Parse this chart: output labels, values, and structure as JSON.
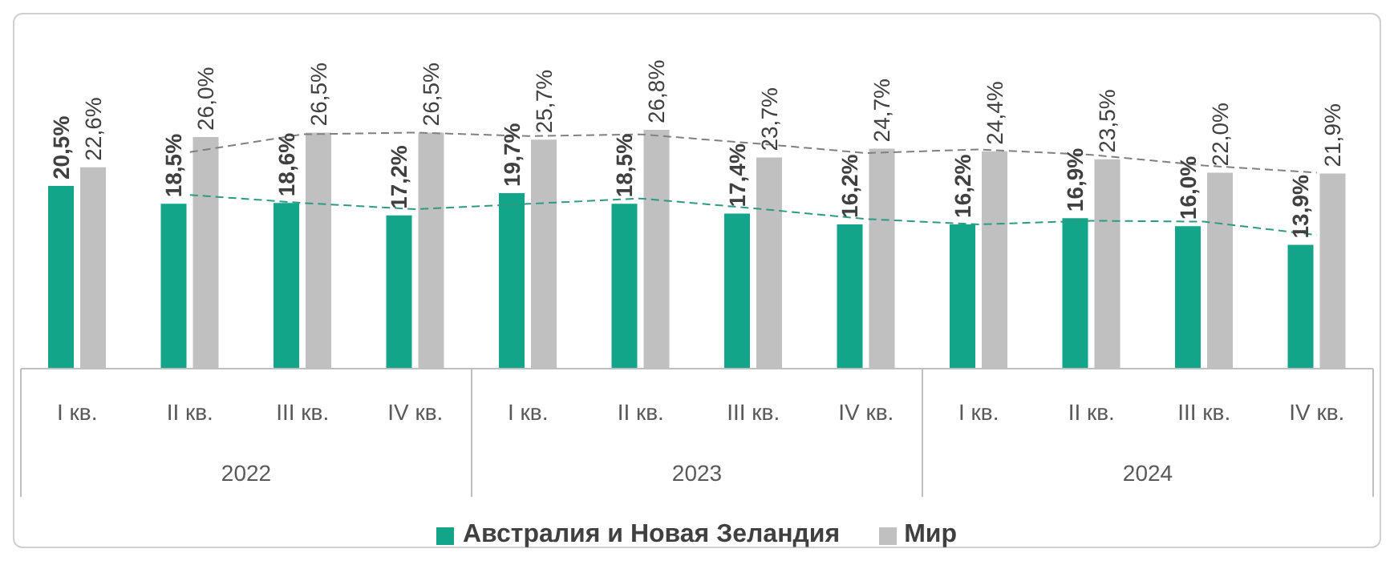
{
  "chart_data": {
    "type": "bar",
    "categories": [
      "I кв.",
      "II кв.",
      "III кв.",
      "IV кв.",
      "I кв.",
      "II кв.",
      "III кв.",
      "IV кв.",
      "I кв.",
      "II кв.",
      "III кв.",
      "IV кв."
    ],
    "series": [
      {
        "name": "Австралия и Новая Зеландия",
        "color": "#12a58a",
        "values": [
          20.5,
          18.5,
          18.6,
          17.2,
          19.7,
          18.5,
          17.4,
          16.2,
          16.2,
          16.9,
          16.0,
          13.9
        ],
        "value_labels": [
          "20,5%",
          "18,5%",
          "18,6%",
          "17,2%",
          "19,7%",
          "18,5%",
          "17,4%",
          "16,2%",
          "16,2%",
          "16,9%",
          "16,0%",
          "13,9%"
        ]
      },
      {
        "name": "Мир",
        "color": "#c0c0c0",
        "values": [
          22.6,
          26.0,
          26.5,
          26.5,
          25.7,
          26.8,
          23.7,
          24.7,
          24.4,
          23.5,
          22.0,
          21.9
        ],
        "value_labels": [
          "22,6%",
          "26,0%",
          "26,5%",
          "26,5%",
          "25,7%",
          "26,8%",
          "23,7%",
          "24,7%",
          "24,4%",
          "23,5%",
          "22,0%",
          "21,9%"
        ]
      },
      {
        "type": "line",
        "color": "#2e9a7e",
        "line_style": "dashed",
        "values": [
          null,
          19.5,
          18.6,
          17.9,
          18.5,
          19.1,
          18.0,
          16.8,
          16.2,
          16.6,
          16.5,
          15.0
        ]
      },
      {
        "type": "line",
        "color": "#808080",
        "line_style": "dashed",
        "values": [
          null,
          24.3,
          26.3,
          26.5,
          26.1,
          26.3,
          25.3,
          24.2,
          24.6,
          24.0,
          22.8,
          22.0
        ]
      }
    ],
    "annotations": [
      "2022",
      "2023",
      "2024"
    ],
    "legend": "bottom"
  }
}
